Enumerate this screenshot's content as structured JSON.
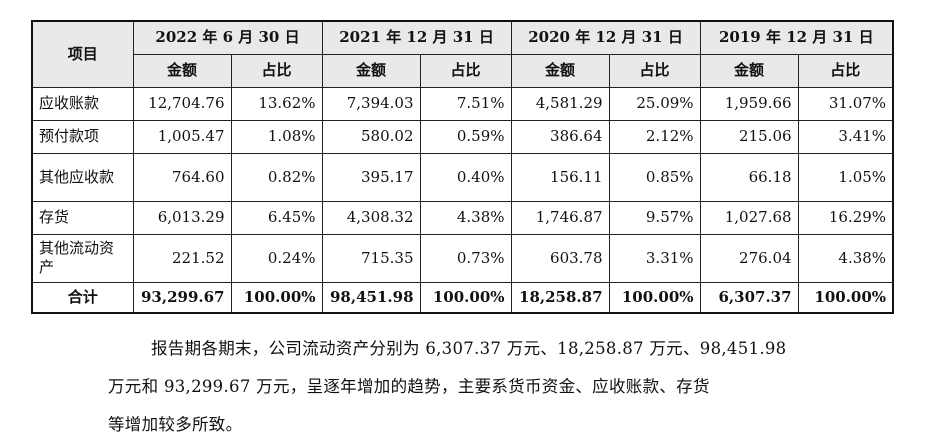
{
  "table": {
    "item_header": "项目",
    "periods": [
      "2022 年 6 月 30 日",
      "2021 年 12 月 31 日",
      "2020 年 12 月 31 日",
      "2019 年 12 月 31 日"
    ],
    "sub_headers": {
      "amount": "金额",
      "ratio": "占比"
    },
    "rows": [
      {
        "label": "应收账款",
        "values": [
          "12,704.76",
          "13.62%",
          "7,394.03",
          "7.51%",
          "4,581.29",
          "25.09%",
          "1,959.66",
          "31.07%"
        ]
      },
      {
        "label": "预付款项",
        "values": [
          "1,005.47",
          "1.08%",
          "580.02",
          "0.59%",
          "386.64",
          "2.12%",
          "215.06",
          "3.41%"
        ]
      },
      {
        "label": "其他应收款",
        "values": [
          "764.60",
          "0.82%",
          "395.17",
          "0.40%",
          "156.11",
          "0.85%",
          "66.18",
          "1.05%"
        ]
      },
      {
        "label": "存货",
        "values": [
          "6,013.29",
          "6.45%",
          "4,308.32",
          "4.38%",
          "1,746.87",
          "9.57%",
          "1,027.68",
          "16.29%"
        ]
      },
      {
        "label": "其他流动资产",
        "values": [
          "221.52",
          "0.24%",
          "715.35",
          "0.73%",
          "603.78",
          "3.31%",
          "276.04",
          "4.38%"
        ]
      }
    ],
    "total": {
      "label": "合计",
      "values": [
        "93,299.67",
        "100.00%",
        "98,451.98",
        "100.00%",
        "18,258.87",
        "100.00%",
        "6,307.37",
        "100.00%"
      ]
    }
  },
  "paragraph": {
    "line1": "报告期各期末，公司流动资产分别为 6,307.37 万元、18,258.87 万元、98,451.98",
    "line2": "万元和 93,299.67 万元，呈逐年增加的趋势，主要系货币资金、应收账款、存货",
    "line3": "等增加较多所致。"
  }
}
